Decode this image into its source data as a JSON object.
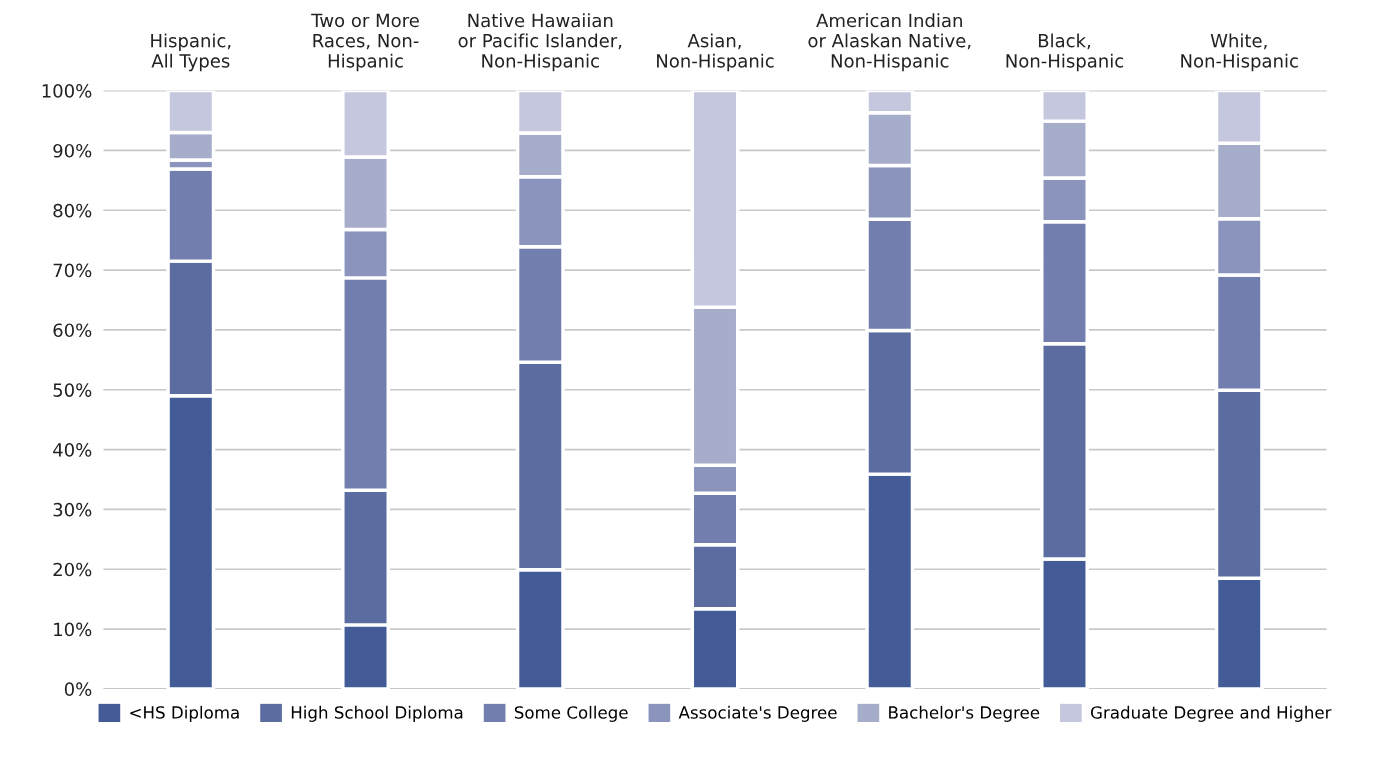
{
  "chart_data": {
    "type": "bar",
    "stacked": true,
    "categories": [
      "Hispanic,\nAll Types",
      "Two or More\nRaces, Non-\nHispanic",
      "Native Hawaiian\nor Pacific Islander,\nNon-Hispanic",
      "Asian,\nNon-Hispanic",
      "American Indian\nor Alaskan Native,\nNon-Hispanic",
      "Black,\nNon-Hispanic",
      "White,\nNon-Hispanic"
    ],
    "series": [
      {
        "name": "<HS Diploma",
        "color": "#435c98",
        "values": [
          49.0,
          10.7,
          19.9,
          13.4,
          35.9,
          21.7,
          18.5
        ]
      },
      {
        "name": "High School Diploma",
        "color": "#5a6ca0",
        "values": [
          22.5,
          22.5,
          34.7,
          10.7,
          24.0,
          36.0,
          31.4
        ]
      },
      {
        "name": "Some College",
        "color": "#717eae",
        "values": [
          15.4,
          35.5,
          19.3,
          8.6,
          18.6,
          20.4,
          19.3
        ]
      },
      {
        "name": "Associate's Degree",
        "color": "#8a94bd",
        "values": [
          1.5,
          8.1,
          11.7,
          4.7,
          9.0,
          7.3,
          9.4
        ]
      },
      {
        "name": "Bachelor's Degree",
        "color": "#a6adcb",
        "values": [
          4.6,
          12.1,
          7.3,
          26.4,
          8.8,
          9.5,
          12.6
        ]
      },
      {
        "name": "Graduate Degree and Higher",
        "color": "#c4c7de",
        "values": [
          7.0,
          11.1,
          7.1,
          36.2,
          3.7,
          5.1,
          8.8
        ]
      }
    ],
    "ylim": [
      0,
      100
    ],
    "yticks": [
      {
        "value": 0,
        "label": "0%"
      },
      {
        "value": 10,
        "label": "10%"
      },
      {
        "value": 20,
        "label": "20%"
      },
      {
        "value": 30,
        "label": "30%"
      },
      {
        "value": 40,
        "label": "40%"
      },
      {
        "value": 50,
        "label": "50%"
      },
      {
        "value": 60,
        "label": "60%"
      },
      {
        "value": 70,
        "label": "70%"
      },
      {
        "value": 80,
        "label": "80%"
      },
      {
        "value": 90,
        "label": "90%"
      },
      {
        "value": 100,
        "label": "100%"
      }
    ],
    "grid": "y",
    "legend": "bottom"
  }
}
